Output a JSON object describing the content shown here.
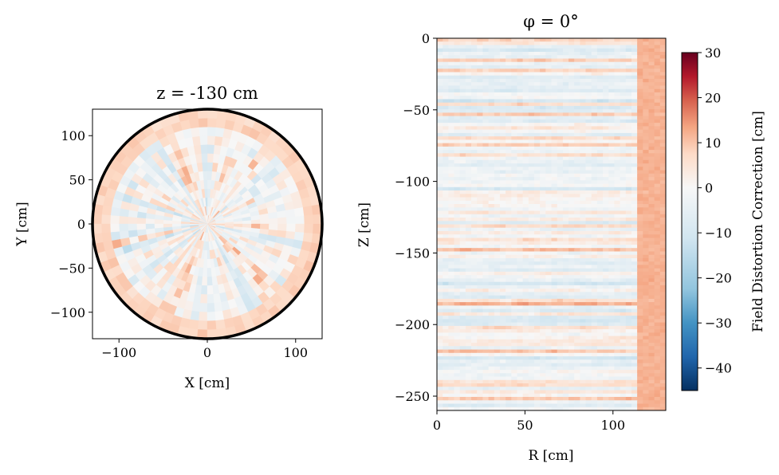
{
  "chart_data": [
    {
      "type": "heatmap",
      "projection": "polar-xy",
      "title": "z = -130 cm",
      "xlabel": "X [cm]",
      "ylabel": "Y [cm]",
      "xlim": [
        -130,
        130
      ],
      "ylim": [
        -130,
        130
      ],
      "xticks": [
        -100,
        0,
        100
      ],
      "yticks": [
        100,
        50,
        0,
        -50,
        -100
      ],
      "xtick_labels": [
        "−100",
        "0",
        "100"
      ],
      "ytick_labels": [
        "100",
        "50",
        "0",
        "−50",
        "−100"
      ],
      "boundary_radius": 130,
      "n_spokes": 72,
      "n_rings": 13,
      "edge_value": 8
    },
    {
      "type": "heatmap",
      "title": "φ = 0°",
      "xlabel": "R [cm]",
      "ylabel": "Z [cm]",
      "xlim": [
        0,
        130
      ],
      "ylim": [
        -260,
        0
      ],
      "xticks": [
        0,
        50,
        100
      ],
      "yticks": [
        0,
        -50,
        -100,
        -150,
        -200,
        -250
      ],
      "xtick_labels": [
        "0",
        "50",
        "100"
      ],
      "ytick_labels": [
        "0",
        "−50",
        "−100",
        "−150",
        "−200",
        "−250"
      ],
      "n_rows": 110,
      "n_cols": 40,
      "edge_r": 112,
      "edge_value": 12
    }
  ],
  "colorbar": {
    "label": "Field Distortion Correction [cm]",
    "vmin": -45,
    "vmax": 30,
    "ticks": [
      30,
      20,
      10,
      0,
      -10,
      -20,
      -30,
      -40
    ],
    "tick_labels": [
      "30",
      "20",
      "10",
      "0",
      "−10",
      "−20",
      "−30",
      "−40"
    ],
    "colormap": [
      "#053061",
      "#2166ac",
      "#4393c3",
      "#92c5de",
      "#d1e5f0",
      "#f7f7f7",
      "#fddbc7",
      "#f4a582",
      "#d6604d",
      "#b2182b",
      "#67001f"
    ]
  }
}
